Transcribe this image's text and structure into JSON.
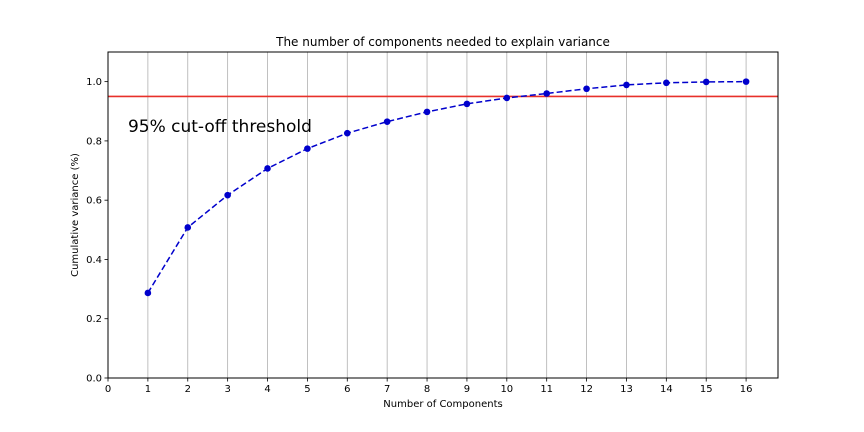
{
  "chart_data": {
    "type": "line",
    "title": "The number of components needed to explain variance",
    "xlabel": "Number of Components",
    "ylabel": "Cumulative variance (%)",
    "xlim": [
      0,
      16.8
    ],
    "ylim": [
      0.0,
      1.1
    ],
    "xticks": [
      0,
      1,
      2,
      3,
      4,
      5,
      6,
      7,
      8,
      9,
      10,
      11,
      12,
      13,
      14,
      15,
      16
    ],
    "yticks": [
      0.0,
      0.2,
      0.4,
      0.6,
      0.8,
      1.0
    ],
    "xtick_labels": [
      "0",
      "1",
      "2",
      "3",
      "4",
      "5",
      "6",
      "7",
      "8",
      "9",
      "10",
      "11",
      "12",
      "13",
      "14",
      "15",
      "16"
    ],
    "ytick_labels": [
      "0.0",
      "0.2",
      "0.4",
      "0.6",
      "0.8",
      "1.0"
    ],
    "grid": "vertical lines at x ticks",
    "series": [
      {
        "color": "#0000cc",
        "line_style": "dashed",
        "marker": "circle",
        "x": [
          1,
          2,
          3,
          4,
          5,
          6,
          7,
          8,
          9,
          10,
          11,
          12,
          13,
          14,
          15,
          16
        ],
        "y": [
          0.287,
          0.508,
          0.617,
          0.707,
          0.774,
          0.826,
          0.865,
          0.898,
          0.925,
          0.945,
          0.96,
          0.976,
          0.989,
          0.996,
          0.999,
          1.0
        ]
      }
    ],
    "threshold": {
      "y": 0.95,
      "color": "#e8302a"
    },
    "annotation": {
      "text": "95% cut-off threshold",
      "x": 0.5,
      "y": 0.85,
      "color": "#ff0000"
    }
  }
}
